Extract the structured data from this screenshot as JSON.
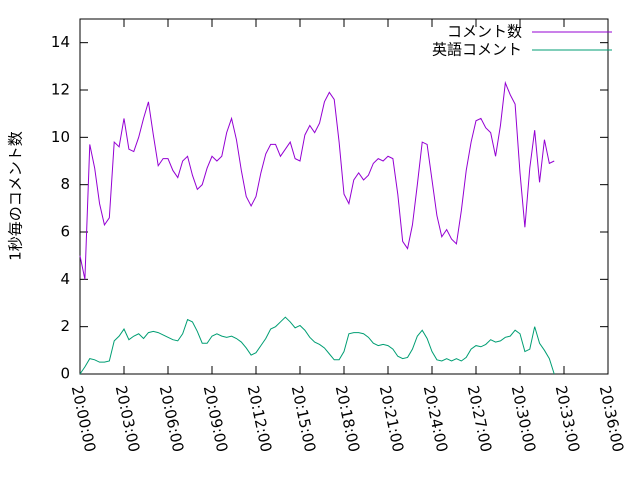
{
  "chart_data": {
    "type": "line",
    "y_label": "1秒毎のコメント数",
    "x": [
      "20:00:00",
      "20:00:20",
      "20:00:40",
      "20:01:00",
      "20:01:20",
      "20:01:40",
      "20:02:00",
      "20:02:20",
      "20:02:40",
      "20:03:00",
      "20:03:20",
      "20:03:40",
      "20:04:00",
      "20:04:20",
      "20:04:40",
      "20:05:00",
      "20:05:20",
      "20:05:40",
      "20:06:00",
      "20:06:20",
      "20:06:40",
      "20:07:00",
      "20:07:20",
      "20:07:40",
      "20:08:00",
      "20:08:20",
      "20:08:40",
      "20:09:00",
      "20:09:20",
      "20:09:40",
      "20:10:00",
      "20:10:20",
      "20:10:40",
      "20:11:00",
      "20:11:20",
      "20:11:40",
      "20:12:00",
      "20:12:20",
      "20:12:40",
      "20:13:00",
      "20:13:20",
      "20:13:40",
      "20:14:00",
      "20:14:20",
      "20:14:40",
      "20:15:00",
      "20:15:20",
      "20:15:40",
      "20:16:00",
      "20:16:20",
      "20:16:40",
      "20:17:00",
      "20:17:20",
      "20:17:40",
      "20:18:00",
      "20:18:20",
      "20:18:40",
      "20:19:00",
      "20:19:20",
      "20:19:40",
      "20:20:00",
      "20:20:20",
      "20:20:40",
      "20:21:00",
      "20:21:20",
      "20:21:40",
      "20:22:00",
      "20:22:20",
      "20:22:40",
      "20:23:00",
      "20:23:20",
      "20:23:40",
      "20:24:00",
      "20:24:20",
      "20:24:40",
      "20:25:00",
      "20:25:20",
      "20:25:40",
      "20:26:00",
      "20:26:20",
      "20:26:40",
      "20:27:00",
      "20:27:20",
      "20:27:40",
      "20:28:00",
      "20:28:20",
      "20:28:40",
      "20:29:00",
      "20:29:20",
      "20:29:40",
      "20:30:00",
      "20:30:20",
      "20:30:40",
      "20:31:00",
      "20:31:20",
      "20:31:40",
      "20:32:00",
      "20:32:20"
    ],
    "series": [
      {
        "name": "コメント数",
        "color": "#9400d3",
        "values": [
          5.0,
          4.0,
          9.7,
          8.7,
          7.2,
          6.3,
          6.6,
          9.8,
          9.6,
          10.8,
          9.5,
          9.4,
          10.0,
          10.8,
          11.5,
          10.1,
          8.8,
          9.1,
          9.1,
          8.6,
          8.3,
          9.0,
          9.2,
          8.4,
          7.8,
          8.0,
          8.7,
          9.2,
          9.0,
          9.2,
          10.2,
          10.8,
          9.9,
          8.6,
          7.5,
          7.1,
          7.5,
          8.5,
          9.3,
          9.7,
          9.7,
          9.2,
          9.5,
          9.8,
          9.1,
          9.0,
          10.1,
          10.5,
          10.2,
          10.6,
          11.5,
          11.9,
          11.6,
          9.8,
          7.6,
          7.2,
          8.2,
          8.5,
          8.2,
          8.4,
          8.9,
          9.1,
          9.0,
          9.2,
          9.1,
          7.6,
          5.6,
          5.3,
          6.3,
          8.0,
          9.8,
          9.7,
          8.2,
          6.7,
          5.8,
          6.1,
          5.7,
          5.5,
          6.9,
          8.6,
          9.8,
          10.7,
          10.8,
          10.4,
          10.2,
          9.2,
          10.5,
          12.3,
          11.8,
          11.4,
          8.5,
          6.2,
          8.7,
          10.3,
          8.1,
          9.9,
          8.9,
          9.0
        ]
      },
      {
        "name": "英語コメント",
        "color": "#009e73",
        "values": [
          0,
          0.3,
          0.65,
          0.6,
          0.5,
          0.5,
          0.55,
          1.4,
          1.6,
          1.9,
          1.45,
          1.6,
          1.7,
          1.5,
          1.75,
          1.8,
          1.75,
          1.65,
          1.55,
          1.45,
          1.4,
          1.7,
          2.3,
          2.2,
          1.8,
          1.3,
          1.3,
          1.6,
          1.7,
          1.6,
          1.55,
          1.6,
          1.5,
          1.35,
          1.1,
          0.8,
          0.9,
          1.2,
          1.5,
          1.9,
          2.0,
          2.2,
          2.4,
          2.2,
          1.95,
          2.05,
          1.85,
          1.55,
          1.35,
          1.25,
          1.1,
          0.85,
          0.6,
          0.6,
          0.95,
          1.7,
          1.75,
          1.75,
          1.7,
          1.55,
          1.3,
          1.2,
          1.25,
          1.2,
          1.05,
          0.75,
          0.65,
          0.7,
          1.05,
          1.6,
          1.85,
          1.5,
          0.95,
          0.6,
          0.55,
          0.65,
          0.55,
          0.65,
          0.55,
          0.7,
          1.05,
          1.2,
          1.15,
          1.25,
          1.45,
          1.35,
          1.4,
          1.55,
          1.6,
          1.85,
          1.7,
          0.95,
          1.05,
          2.0,
          1.3,
          1.0,
          0.65,
          0
        ]
      }
    ],
    "xlim": [
      "20:00:00",
      "20:36:00"
    ],
    "xticks": [
      "20:00:00",
      "20:03:00",
      "20:06:00",
      "20:09:00",
      "20:12:00",
      "20:15:00",
      "20:18:00",
      "20:21:00",
      "20:24:00",
      "20:27:00",
      "20:30:00",
      "20:33:00",
      "20:36:00"
    ],
    "ylim": [
      0,
      15
    ],
    "yticks": [
      0,
      2,
      4,
      6,
      8,
      10,
      12,
      14
    ],
    "legend": "top-right"
  }
}
